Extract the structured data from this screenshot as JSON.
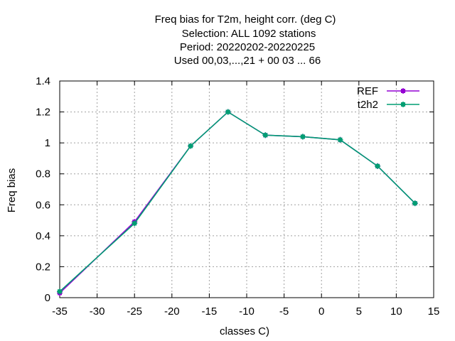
{
  "chart_data": {
    "type": "line",
    "title_lines": [
      "Freq bias  for T2m, height corr. (deg C)",
      "Selection: ALL   1092 stations",
      "Period: 20220202-20220225",
      "Used  00,03,...,21  + 00 03 ... 66"
    ],
    "xlabel": "classes C)",
    "ylabel": "Freq bias",
    "xlim": [
      -35,
      15
    ],
    "ylim": [
      0,
      1.4
    ],
    "x_ticks": [
      -35,
      -30,
      -25,
      -20,
      -15,
      -10,
      -5,
      0,
      5,
      10,
      15
    ],
    "x_tick_labels": [
      "-35",
      "-30",
      "-25",
      "-20",
      "-15",
      "-10",
      "-5",
      "0",
      "5",
      "10",
      "15"
    ],
    "y_ticks": [
      0,
      0.2,
      0.4,
      0.6,
      0.8,
      1.0,
      1.2,
      1.4
    ],
    "y_tick_labels": [
      "0",
      "0.2",
      "0.4",
      "0.6",
      "0.8",
      "1",
      "1.2",
      "1.4"
    ],
    "grid": true,
    "legend_position": "top-right",
    "series": [
      {
        "name": "REF",
        "color": "#9400d3",
        "x": [
          -35,
          -25,
          -17.5,
          -12.5,
          -7.5,
          -2.5,
          2.5,
          7.5,
          12.5
        ],
        "y": [
          0.03,
          0.49,
          0.98,
          1.2,
          1.05,
          1.04,
          1.02,
          0.85,
          0.61
        ]
      },
      {
        "name": "t2h2",
        "color": "#009e73",
        "x": [
          -35,
          -25,
          -17.5,
          -12.5,
          -7.5,
          -2.5,
          2.5,
          7.5,
          12.5
        ],
        "y": [
          0.04,
          0.48,
          0.98,
          1.2,
          1.05,
          1.04,
          1.02,
          0.85,
          0.61
        ]
      }
    ]
  }
}
